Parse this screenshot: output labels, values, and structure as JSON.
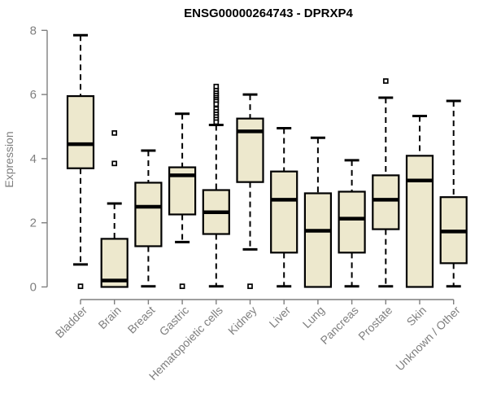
{
  "chart_data": {
    "type": "boxplot",
    "title": "ENSG00000264743 - DPRXP4",
    "ylabel": "Expression",
    "xlabel": "",
    "ylim": [
      0,
      8
    ],
    "yticks": [
      0,
      2,
      4,
      6,
      8
    ],
    "grid": false,
    "legend": null,
    "box_fill_color": "#EDE8CD",
    "axis_text_color": "#7f7f7f",
    "categories": [
      "Bladder",
      "Brain",
      "Breast",
      "Gastric",
      "Hematopoietic cells",
      "Kidney",
      "Liver",
      "Lung",
      "Pancreas",
      "Prostate",
      "Skin",
      "Unknown / Other"
    ],
    "boxes": [
      {
        "category": "Bladder",
        "whisker_low": 0.7,
        "q1": 3.7,
        "median": 4.45,
        "q3": 5.95,
        "whisker_high": 7.85,
        "outliers": [
          0.02
        ]
      },
      {
        "category": "Brain",
        "whisker_low": 0.0,
        "q1": 0.0,
        "median": 0.2,
        "q3": 1.5,
        "whisker_high": 2.6,
        "outliers": [
          4.8,
          3.85
        ]
      },
      {
        "category": "Breast",
        "whisker_low": 0.02,
        "q1": 1.27,
        "median": 2.5,
        "q3": 3.25,
        "whisker_high": 4.25,
        "outliers": []
      },
      {
        "category": "Gastric",
        "whisker_low": 1.4,
        "q1": 2.26,
        "median": 3.48,
        "q3": 3.73,
        "whisker_high": 5.4,
        "outliers": [
          0.02
        ]
      },
      {
        "category": "Hematopoietic cells",
        "whisker_low": 0.02,
        "q1": 1.65,
        "median": 2.33,
        "q3": 3.02,
        "whisker_high": 5.05,
        "outliers": [
          6.25,
          6.12,
          6.04,
          5.97,
          5.9,
          5.84,
          5.78,
          5.7,
          5.55,
          5.46,
          5.38,
          5.3,
          5.22,
          5.14
        ]
      },
      {
        "category": "Kidney",
        "whisker_low": 1.17,
        "q1": 3.27,
        "median": 4.85,
        "q3": 5.25,
        "whisker_high": 6.0,
        "outliers": [
          0.02
        ]
      },
      {
        "category": "Liver",
        "whisker_low": 0.02,
        "q1": 1.07,
        "median": 2.72,
        "q3": 3.6,
        "whisker_high": 4.95,
        "outliers": []
      },
      {
        "category": "Lung",
        "whisker_low": 0.0,
        "q1": 0.0,
        "median": 1.75,
        "q3": 2.92,
        "whisker_high": 4.65,
        "outliers": []
      },
      {
        "category": "Pancreas",
        "whisker_low": 0.02,
        "q1": 1.07,
        "median": 2.13,
        "q3": 2.97,
        "whisker_high": 3.95,
        "outliers": []
      },
      {
        "category": "Prostate",
        "whisker_low": 0.02,
        "q1": 1.8,
        "median": 2.72,
        "q3": 3.48,
        "whisker_high": 5.9,
        "outliers": [
          6.42
        ]
      },
      {
        "category": "Skin",
        "whisker_low": 0.0,
        "q1": 0.0,
        "median": 3.32,
        "q3": 4.09,
        "whisker_high": 5.33,
        "outliers": []
      },
      {
        "category": "Unknown / Other",
        "whisker_low": 0.02,
        "q1": 0.74,
        "median": 1.73,
        "q3": 2.8,
        "whisker_high": 5.8,
        "outliers": []
      }
    ]
  }
}
